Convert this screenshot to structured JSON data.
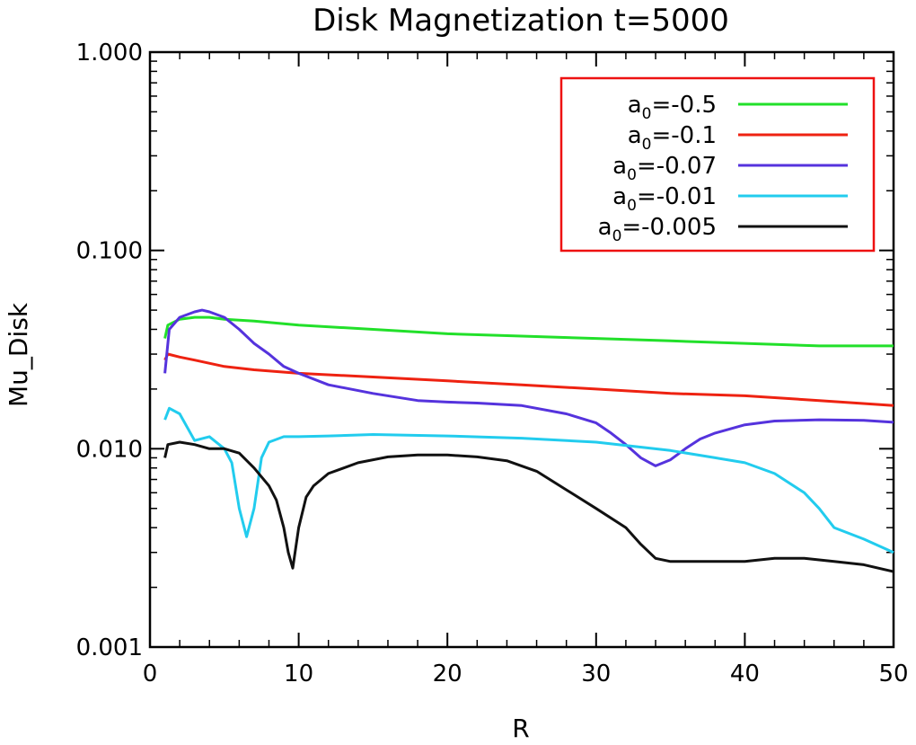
{
  "chart_data": {
    "type": "line",
    "title": "Disk Magnetization t=5000",
    "xlabel": "R",
    "ylabel": "Mu_Disk",
    "xlim": [
      0,
      50
    ],
    "ylim": [
      0.001,
      1.0
    ],
    "yscale": "log",
    "xticks": [
      0,
      10,
      20,
      30,
      40,
      50
    ],
    "xtick_labels": [
      "0",
      "10",
      "20",
      "30",
      "40",
      "50"
    ],
    "yticks": [
      0.001,
      0.01,
      0.1,
      1.0
    ],
    "ytick_labels": [
      "0.001",
      "0.010",
      "0.100",
      "1.000"
    ],
    "legend_position": "top-right",
    "series": [
      {
        "name": "a0=-0.5",
        "legend_main": "a",
        "legend_sub": "0",
        "legend_rest": "=-0.5",
        "color": "#22e02a",
        "x": [
          1.0,
          1.2,
          2,
          3,
          4,
          5,
          7,
          10,
          15,
          20,
          25,
          30,
          35,
          40,
          45,
          50
        ],
        "y": [
          0.036,
          0.042,
          0.045,
          0.046,
          0.046,
          0.045,
          0.044,
          0.042,
          0.04,
          0.038,
          0.037,
          0.036,
          0.035,
          0.034,
          0.033,
          0.033
        ]
      },
      {
        "name": "a0=-0.1",
        "legend_main": "a",
        "legend_sub": "0",
        "legend_rest": "=-0.1",
        "color": "#ee2211",
        "x": [
          1.0,
          1.2,
          2,
          3,
          5,
          7,
          10,
          15,
          20,
          25,
          30,
          35,
          40,
          45,
          50
        ],
        "y": [
          0.028,
          0.03,
          0.029,
          0.028,
          0.026,
          0.025,
          0.024,
          0.023,
          0.022,
          0.021,
          0.02,
          0.019,
          0.0185,
          0.0175,
          0.0165
        ]
      },
      {
        "name": "a0=-0.07",
        "legend_main": "a",
        "legend_sub": "0",
        "legend_rest": "=-0.07",
        "color": "#5533dd",
        "x": [
          1.0,
          1.3,
          2,
          3,
          3.5,
          4,
          5,
          6,
          7,
          8,
          9,
          10,
          12,
          15,
          18,
          20,
          22,
          25,
          28,
          30,
          31,
          32,
          33,
          34,
          35,
          36,
          37,
          38,
          40,
          42,
          45,
          48,
          50
        ],
        "y": [
          0.024,
          0.04,
          0.046,
          0.049,
          0.05,
          0.049,
          0.046,
          0.04,
          0.034,
          0.03,
          0.026,
          0.024,
          0.021,
          0.019,
          0.0175,
          0.0172,
          0.017,
          0.0165,
          0.015,
          0.0135,
          0.012,
          0.0105,
          0.009,
          0.0082,
          0.0088,
          0.01,
          0.0112,
          0.012,
          0.0132,
          0.0138,
          0.014,
          0.0139,
          0.0136
        ]
      },
      {
        "name": "a0=-0.01",
        "legend_main": "a",
        "legend_sub": "0",
        "legend_rest": "=-0.01",
        "color": "#22ccee",
        "x": [
          1.0,
          1.3,
          2,
          3,
          4,
          5,
          5.5,
          6,
          6.5,
          7,
          7.5,
          8,
          9,
          10,
          12,
          15,
          20,
          25,
          30,
          35,
          38,
          40,
          42,
          44,
          45,
          46,
          48,
          50
        ],
        "y": [
          0.014,
          0.016,
          0.015,
          0.011,
          0.0115,
          0.01,
          0.0085,
          0.005,
          0.0036,
          0.005,
          0.009,
          0.0108,
          0.0115,
          0.0115,
          0.0116,
          0.0118,
          0.0116,
          0.0113,
          0.0108,
          0.0098,
          0.009,
          0.0085,
          0.0075,
          0.006,
          0.005,
          0.004,
          0.0035,
          0.003
        ]
      },
      {
        "name": "a0=-0.005",
        "legend_main": "a",
        "legend_sub": "0",
        "legend_rest": "=-0.005",
        "color": "#111111",
        "x": [
          1.0,
          1.2,
          2,
          3,
          4,
          5,
          6,
          7,
          8,
          8.5,
          9,
          9.3,
          9.6,
          10,
          10.5,
          11,
          12,
          14,
          16,
          18,
          20,
          22,
          24,
          26,
          28,
          30,
          32,
          33,
          34,
          35,
          38,
          40,
          42,
          44,
          46,
          48,
          50
        ],
        "y": [
          0.009,
          0.0105,
          0.0108,
          0.0105,
          0.01,
          0.01,
          0.0095,
          0.008,
          0.0065,
          0.0055,
          0.004,
          0.003,
          0.0025,
          0.004,
          0.0057,
          0.0065,
          0.0075,
          0.0085,
          0.0091,
          0.0093,
          0.0093,
          0.0091,
          0.0087,
          0.0077,
          0.0062,
          0.005,
          0.004,
          0.0033,
          0.0028,
          0.0027,
          0.0027,
          0.0027,
          0.0028,
          0.0028,
          0.0027,
          0.0026,
          0.0024
        ]
      }
    ]
  }
}
